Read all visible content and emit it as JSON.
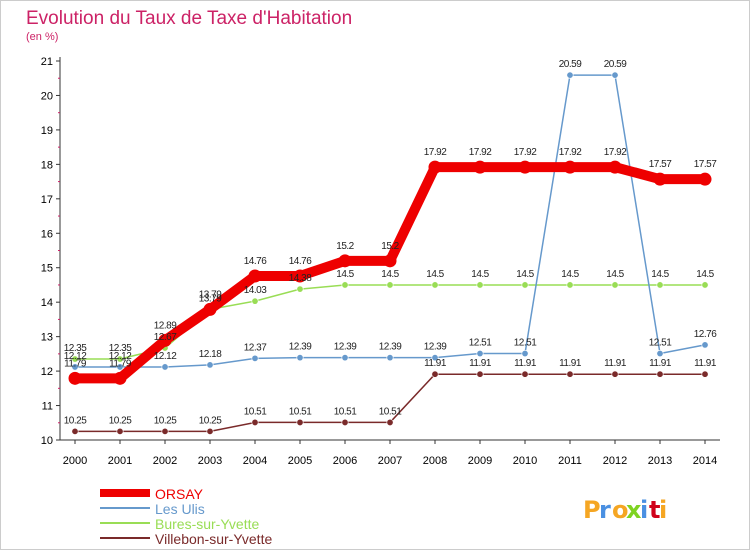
{
  "chart_data": {
    "type": "line",
    "title": "Evolution du Taux de Taxe d'Habitation",
    "subtitle": "(en %)",
    "xlabel": "",
    "ylabel": "",
    "x": [
      "2000",
      "2001",
      "2002",
      "2003",
      "2004",
      "2005",
      "2006",
      "2007",
      "2008",
      "2009",
      "2010",
      "2011",
      "2012",
      "2013",
      "2014"
    ],
    "ylim": [
      10,
      21
    ],
    "yticks": [
      "10",
      "11",
      "12",
      "13",
      "14",
      "15",
      "16",
      "17",
      "18",
      "19",
      "20",
      "21"
    ],
    "grid": false,
    "legend_position": "bottom-left",
    "series": [
      {
        "name": "ORSAY",
        "color": "#ee0000",
        "values": [
          11.79,
          11.79,
          12.89,
          13.79,
          14.76,
          14.76,
          15.2,
          15.2,
          17.92,
          17.92,
          17.92,
          17.92,
          17.92,
          17.57,
          17.57
        ],
        "labels": [
          "11.79",
          "11.79",
          "12.89",
          "13.79",
          "14.76",
          "14.76",
          "15.2",
          "15.2",
          "17.92",
          "17.92",
          "17.92",
          "17.92",
          "17.92",
          "17.57",
          "17.57"
        ]
      },
      {
        "name": "Les Ulis",
        "color": "#6699cc",
        "values": [
          12.12,
          12.12,
          12.12,
          12.18,
          12.37,
          12.39,
          12.39,
          12.39,
          12.39,
          12.51,
          12.51,
          20.59,
          20.59,
          12.51,
          12.76
        ],
        "labels": [
          "12.12",
          "12.12",
          "12.12",
          "12.18",
          "12.37",
          "12.39",
          "12.39",
          "12.39",
          "12.39",
          "12.51",
          "12.51",
          "20.59",
          "20.59",
          "12.51",
          "12.76"
        ]
      },
      {
        "name": "Bures-sur-Yvette",
        "color": "#99dd55",
        "values": [
          12.35,
          12.35,
          12.67,
          13.79,
          14.03,
          14.38,
          14.5,
          14.5,
          14.5,
          14.5,
          14.5,
          14.5,
          14.5,
          14.5,
          14.5
        ],
        "labels": [
          "12.35",
          "12.35",
          "12.67",
          "13.79",
          "14.03",
          "14.38",
          "14.5",
          "14.5",
          "14.5",
          "14.5",
          "14.5",
          "14.5",
          "14.5",
          "14.5",
          "14.5"
        ]
      },
      {
        "name": "Villebon-sur-Yvette",
        "color": "#7a2a2a",
        "values": [
          10.25,
          10.25,
          10.25,
          10.25,
          10.51,
          10.51,
          10.51,
          10.51,
          11.91,
          11.91,
          11.91,
          11.91,
          11.91,
          11.91,
          11.91
        ],
        "labels": [
          "10.25",
          "10.25",
          "10.25",
          "10.25",
          "10.51",
          "10.51",
          "10.51",
          "10.51",
          "11.91",
          "11.91",
          "11.91",
          "11.91",
          "11.91",
          "11.91",
          "11.91"
        ]
      }
    ]
  },
  "branding": {
    "logo_text": "Proxiti",
    "colors": [
      "#f5a623",
      "#4a90e2",
      "#f5a623",
      "#7ed321",
      "#4a90e2",
      "#d0021b",
      "#f5a623"
    ]
  },
  "colors": {
    "title": "#cc2266",
    "axis": "#333333",
    "tick_text": "#000000",
    "label_text": "#222222"
  }
}
